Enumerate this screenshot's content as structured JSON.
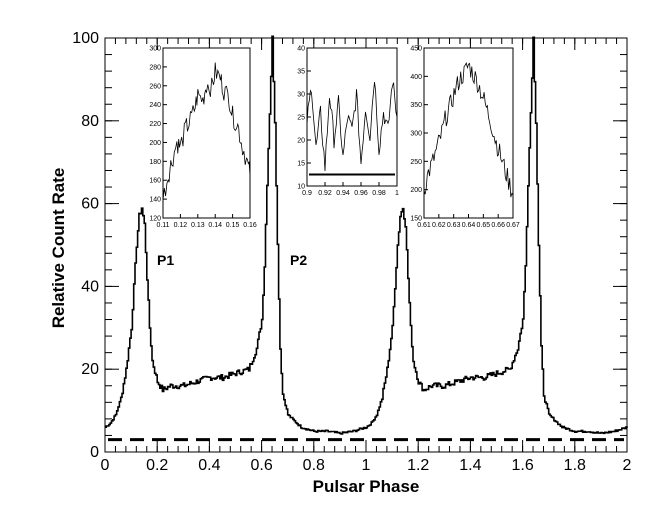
{
  "chart_data": {
    "type": "line",
    "xlabel": "Pulsar Phase",
    "ylabel": "Relative Count Rate",
    "xlim": [
      0,
      2
    ],
    "ylim": [
      0,
      100
    ],
    "x_ticks": [
      "0",
      "0.2",
      "0.4",
      "0.6",
      "0.8",
      "1",
      "1.2",
      "1.4",
      "1.6",
      "1.8",
      "2"
    ],
    "y_ticks": [
      "0",
      "20",
      "40",
      "60",
      "80",
      "100"
    ],
    "grid": false,
    "annotations": [
      "P1",
      "P2"
    ],
    "baseline": {
      "style": "dashed",
      "y": 3
    },
    "series": [
      {
        "style": "step",
        "x": [
          0.0,
          0.02,
          0.04,
          0.06,
          0.08,
          0.1,
          0.11,
          0.12,
          0.13,
          0.14,
          0.15,
          0.16,
          0.17,
          0.18,
          0.2,
          0.22,
          0.25,
          0.3,
          0.35,
          0.4,
          0.45,
          0.5,
          0.55,
          0.58,
          0.6,
          0.61,
          0.62,
          0.63,
          0.64,
          0.65,
          0.66,
          0.67,
          0.68,
          0.7,
          0.75,
          0.8,
          0.85,
          0.9,
          0.95,
          1.0,
          1.02,
          1.04,
          1.06,
          1.08,
          1.1,
          1.11,
          1.12,
          1.13,
          1.14,
          1.15,
          1.16,
          1.17,
          1.18,
          1.2,
          1.22,
          1.25,
          1.3,
          1.35,
          1.4,
          1.45,
          1.5,
          1.55,
          1.58,
          1.6,
          1.61,
          1.62,
          1.63,
          1.64,
          1.65,
          1.66,
          1.67,
          1.68,
          1.7,
          1.75,
          1.8,
          1.85,
          1.9,
          1.95,
          2.0
        ],
        "y": [
          6,
          7,
          9,
          13,
          20,
          30,
          40,
          50,
          57,
          59,
          55,
          42,
          30,
          22,
          17,
          15,
          16,
          16,
          17,
          18,
          18,
          19,
          20,
          25,
          32,
          45,
          65,
          82,
          100,
          80,
          50,
          25,
          14,
          9,
          6,
          5,
          5,
          4.5,
          5,
          6,
          7,
          9,
          13,
          20,
          30,
          40,
          50,
          57,
          59,
          55,
          42,
          30,
          22,
          17,
          15,
          16,
          16,
          17,
          18,
          18,
          19,
          20,
          25,
          32,
          45,
          65,
          82,
          100,
          80,
          50,
          25,
          14,
          9,
          6,
          5,
          5,
          4.5,
          5,
          6
        ]
      }
    ],
    "insets": [
      {
        "xlim": [
          0.11,
          0.16
        ],
        "ylim": [
          120,
          300
        ],
        "x_ticks": [
          "0.11",
          "0.12",
          "0.13",
          "0.14",
          "0.15",
          "0.16"
        ],
        "y_ticks": [
          "120",
          "140",
          "160",
          "180",
          "200",
          "220",
          "240",
          "260",
          "280",
          "300"
        ],
        "x": [
          0.11,
          0.113,
          0.115,
          0.118,
          0.12,
          0.123,
          0.125,
          0.128,
          0.13,
          0.133,
          0.135,
          0.138,
          0.14,
          0.143,
          0.145,
          0.148,
          0.15,
          0.153,
          0.155,
          0.158,
          0.16
        ],
        "y": [
          140,
          165,
          180,
          200,
          195,
          215,
          220,
          235,
          250,
          245,
          262,
          258,
          275,
          268,
          255,
          248,
          228,
          218,
          200,
          182,
          165
        ]
      },
      {
        "xlim": [
          0.9,
          1.0
        ],
        "ylim": [
          10,
          40
        ],
        "x_ticks": [
          "0.9",
          "0.92",
          "0.94",
          "0.96",
          "0.98",
          "1"
        ],
        "y_ticks": [
          "10",
          "15",
          "20",
          "25",
          "30",
          "35",
          "40"
        ],
        "baseline": 12.5,
        "x": [
          0.9,
          0.905,
          0.91,
          0.915,
          0.92,
          0.925,
          0.93,
          0.935,
          0.94,
          0.945,
          0.95,
          0.955,
          0.96,
          0.965,
          0.97,
          0.975,
          0.98,
          0.985,
          0.99,
          0.995,
          1.0
        ],
        "y": [
          24,
          32,
          18,
          26,
          14,
          30,
          20,
          28,
          16,
          25,
          22,
          30,
          15,
          27,
          21,
          34,
          18,
          26,
          22,
          33,
          25
        ]
      },
      {
        "xlim": [
          0.61,
          0.67
        ],
        "ylim": [
          150,
          450
        ],
        "x_ticks": [
          "0.61",
          "0.62",
          "0.63",
          "0.64",
          "0.65",
          "0.66",
          "0.67"
        ],
        "y_ticks": [
          "150",
          "200",
          "250",
          "300",
          "350",
          "400",
          "450"
        ],
        "x": [
          0.61,
          0.613,
          0.616,
          0.619,
          0.622,
          0.625,
          0.628,
          0.631,
          0.634,
          0.637,
          0.64,
          0.643,
          0.646,
          0.649,
          0.652,
          0.655,
          0.658,
          0.661,
          0.664,
          0.667,
          0.67
        ],
        "y": [
          200,
          230,
          250,
          275,
          300,
          330,
          350,
          375,
          395,
          405,
          420,
          405,
          390,
          370,
          345,
          320,
          290,
          265,
          240,
          215,
          190
        ]
      }
    ]
  }
}
